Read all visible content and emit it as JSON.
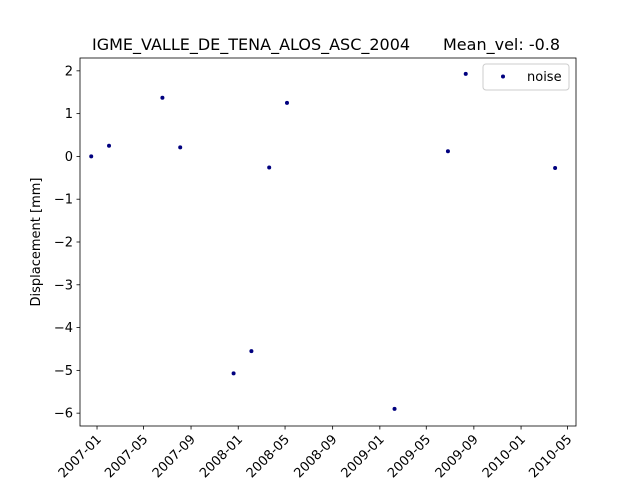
{
  "chart_data": {
    "type": "scatter",
    "title": "IGME_VALLE_DE_TENA_ALOS_ASC_2004",
    "title_right": "Mean_vel: -0.8",
    "xlabel": "",
    "ylabel": "Displacement [mm]",
    "ylim": [
      -6.3,
      2.3
    ],
    "xlim": [
      "2006-11-18",
      "2010-05-23"
    ],
    "yticks": [
      2,
      1,
      0,
      -1,
      -2,
      -3,
      -4,
      -5,
      -6
    ],
    "ytick_labels": [
      "2",
      "1",
      "0",
      "−1",
      "−2",
      "−3",
      "−4",
      "−5",
      "−6"
    ],
    "xticks": [
      "2007-01-01",
      "2007-05-01",
      "2007-09-01",
      "2008-01-01",
      "2008-05-01",
      "2008-09-01",
      "2009-01-01",
      "2009-05-01",
      "2009-09-01",
      "2010-01-01",
      "2010-05-01"
    ],
    "xtick_labels": [
      "2007-01",
      "2007-05",
      "2007-09",
      "2008-01",
      "2008-05",
      "2008-09",
      "2009-01",
      "2009-05",
      "2009-09",
      "2010-01",
      "2010-05"
    ],
    "grid": false,
    "legend_position": "top-right",
    "series": [
      {
        "name": "noise",
        "color": "#00007f",
        "marker": "point",
        "points": [
          {
            "x": "2006-12-17",
            "y": 0.0
          },
          {
            "x": "2007-02-01",
            "y": 0.25
          },
          {
            "x": "2007-06-19",
            "y": 1.37
          },
          {
            "x": "2007-08-04",
            "y": 0.21
          },
          {
            "x": "2007-12-20",
            "y": -5.07
          },
          {
            "x": "2008-02-04",
            "y": -4.55
          },
          {
            "x": "2008-03-21",
            "y": -0.26
          },
          {
            "x": "2008-05-06",
            "y": 1.25
          },
          {
            "x": "2009-02-08",
            "y": -5.9
          },
          {
            "x": "2009-06-26",
            "y": 0.12
          },
          {
            "x": "2009-08-11",
            "y": 1.93
          },
          {
            "x": "2010-03-30",
            "y": -0.27
          }
        ]
      }
    ]
  }
}
